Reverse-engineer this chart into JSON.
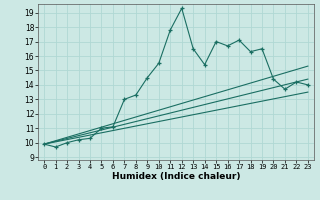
{
  "xlabel": "Humidex (Indice chaleur)",
  "ylabel": "",
  "bg_color": "#cce8e4",
  "grid_color": "#b0d8d4",
  "line_color": "#1a6e62",
  "xlim": [
    -0.5,
    23.5
  ],
  "ylim": [
    8.8,
    19.6
  ],
  "xticks": [
    0,
    1,
    2,
    3,
    4,
    5,
    6,
    7,
    8,
    9,
    10,
    11,
    12,
    13,
    14,
    15,
    16,
    17,
    18,
    19,
    20,
    21,
    22,
    23
  ],
  "yticks": [
    9,
    10,
    11,
    12,
    13,
    14,
    15,
    16,
    17,
    18,
    19
  ],
  "main_x": [
    0,
    1,
    2,
    3,
    4,
    5,
    6,
    7,
    8,
    9,
    10,
    11,
    12,
    13,
    14,
    15,
    16,
    17,
    18,
    19,
    20,
    21,
    22,
    23
  ],
  "main_y": [
    9.9,
    9.7,
    10.0,
    10.2,
    10.3,
    11.0,
    11.1,
    13.0,
    13.3,
    14.5,
    15.5,
    17.8,
    19.3,
    16.5,
    15.4,
    17.0,
    16.7,
    17.1,
    16.3,
    16.5,
    14.4,
    13.7,
    14.2,
    14.0
  ],
  "trend1_x": [
    0,
    23
  ],
  "trend1_y": [
    9.9,
    15.3
  ],
  "trend2_x": [
    0,
    23
  ],
  "trend2_y": [
    9.9,
    13.5
  ],
  "trend3_x": [
    0,
    23
  ],
  "trend3_y": [
    9.9,
    14.4
  ]
}
